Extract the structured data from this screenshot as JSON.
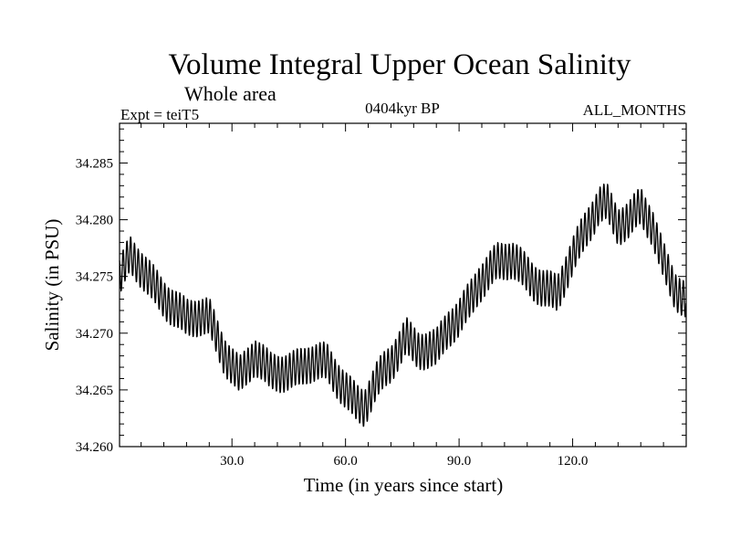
{
  "chart_data": {
    "type": "line",
    "title": "Volume Integral Upper Ocean Salinity",
    "subtitle": "Whole area",
    "left_header": "Expt = teiT5",
    "center_header": "0404kyr BP",
    "right_header": "ALL_MONTHS",
    "xlabel": "Time (in years since start)",
    "ylabel": "Salinity (in PSU)",
    "xlim": [
      0.3,
      150
    ],
    "ylim": [
      34.26,
      34.2885
    ],
    "xticks": [
      30,
      60,
      90,
      120
    ],
    "xtick_labels": [
      "30.0",
      "60.0",
      "90.0",
      "120.0"
    ],
    "yticks": [
      34.26,
      34.265,
      34.27,
      34.275,
      34.28,
      34.285
    ],
    "ytick_labels": [
      "34.260",
      "34.265",
      "34.270",
      "34.275",
      "34.280",
      "34.285"
    ],
    "series": [
      {
        "name": "Salinity",
        "color": "#000000",
        "seasonal_amplitude": 0.0016,
        "trend_x": [
          0.3,
          3,
          8,
          12,
          18,
          24,
          28,
          32,
          36,
          40,
          45,
          50,
          55,
          59,
          63,
          65,
          68,
          72,
          76,
          79,
          84,
          87,
          90,
          95,
          100,
          104,
          108,
          112,
          116,
          120,
          124,
          127,
          129,
          132,
          135,
          138,
          141,
          144,
          147,
          150
        ],
        "trend_y": [
          34.2748,
          34.2767,
          34.2748,
          34.2733,
          34.2712,
          34.2713,
          34.2683,
          34.2663,
          34.2678,
          34.2665,
          34.2668,
          34.2673,
          34.2672,
          34.2655,
          34.264,
          34.2636,
          34.2655,
          34.2672,
          34.2698,
          34.2688,
          34.2685,
          34.2702,
          34.2712,
          34.2745,
          34.2762,
          34.2763,
          34.2752,
          34.2742,
          34.2735,
          34.2765,
          34.2795,
          34.2815,
          34.2817,
          34.2795,
          34.2798,
          34.281,
          34.2795,
          34.2765,
          34.274,
          34.2728
        ]
      }
    ]
  }
}
